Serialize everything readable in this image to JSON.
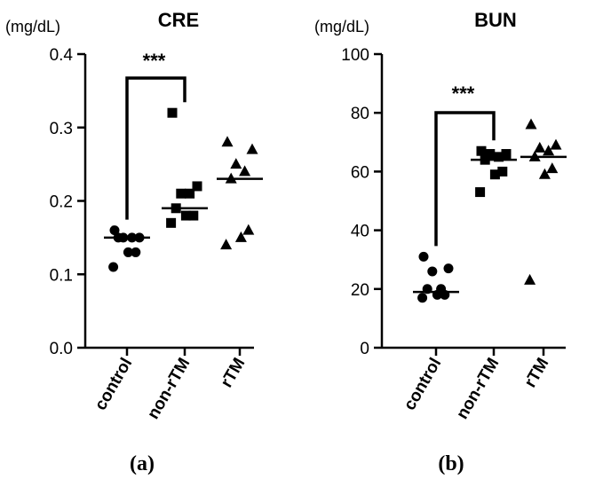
{
  "chart_data": [
    {
      "type": "scatter",
      "title": "CRE",
      "ylabel": "(mg/dL)",
      "ylim": [
        0,
        0.4
      ],
      "yticks": [
        "0.0",
        "0.1",
        "0.2",
        "0.3",
        "0.4"
      ],
      "yticks_values": [
        0,
        0.1,
        0.2,
        0.3,
        0.4
      ],
      "categories": [
        "control",
        "non-rTM",
        "rTM"
      ],
      "panel_label": "(a)",
      "groups": [
        {
          "category": "control",
          "marker": "circle",
          "median": 0.15,
          "values": [
            0.16,
            0.15,
            0.15,
            0.15,
            0.15,
            0.13,
            0.13,
            0.11
          ]
        },
        {
          "category": "non-rTM",
          "marker": "square",
          "median": 0.19,
          "values": [
            0.32,
            0.22,
            0.21,
            0.21,
            0.19,
            0.18,
            0.18,
            0.17
          ]
        },
        {
          "category": "rTM",
          "marker": "triangle",
          "median": 0.23,
          "values": [
            0.28,
            0.27,
            0.25,
            0.24,
            0.23,
            0.16,
            0.15,
            0.14
          ]
        }
      ],
      "significance": [
        {
          "from": "control",
          "to": "non-rTM",
          "label": "***"
        }
      ],
      "grid": false,
      "legend": "none"
    },
    {
      "type": "scatter",
      "title": "BUN",
      "ylabel": "(mg/dL)",
      "ylim": [
        0,
        100
      ],
      "yticks": [
        "0",
        "20",
        "40",
        "60",
        "80",
        "100"
      ],
      "yticks_values": [
        0,
        20,
        40,
        60,
        80,
        100
      ],
      "categories": [
        "control",
        "non-rTM",
        "rTM"
      ],
      "panel_label": "(b)",
      "groups": [
        {
          "category": "control",
          "marker": "circle",
          "median": 19,
          "values": [
            31,
            27,
            26,
            20,
            20,
            18,
            18,
            17
          ]
        },
        {
          "category": "non-rTM",
          "marker": "square",
          "median": 64,
          "values": [
            67,
            66,
            66,
            65,
            64,
            60,
            59,
            53
          ]
        },
        {
          "category": "rTM",
          "marker": "triangle",
          "median": 65,
          "values": [
            76,
            69,
            68,
            67,
            65,
            61,
            59,
            23
          ]
        }
      ],
      "significance": [
        {
          "from": "control",
          "to": "non-rTM",
          "label": "***"
        }
      ],
      "grid": false,
      "legend": "none"
    }
  ]
}
